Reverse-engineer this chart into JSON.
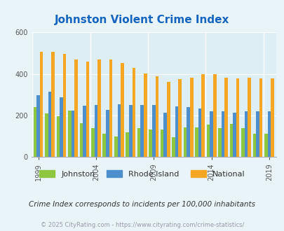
{
  "title": "Johnston Violent Crime Index",
  "johnston_values": [
    240,
    210,
    197,
    225,
    163,
    140,
    113,
    100,
    120,
    140,
    133,
    133,
    95,
    143,
    142,
    155,
    140,
    160,
    140,
    113,
    112
  ],
  "rhode_island_values": [
    298,
    313,
    287,
    225,
    247,
    250,
    228,
    253,
    250,
    250,
    249,
    215,
    245,
    240,
    232,
    220,
    220,
    215,
    221,
    219,
    220
  ],
  "national_values": [
    506,
    507,
    495,
    470,
    460,
    468,
    469,
    453,
    430,
    403,
    390,
    362,
    375,
    383,
    400,
    397,
    383,
    378,
    383,
    380,
    377
  ],
  "johnston_color": "#8dc63f",
  "rhode_island_color": "#4d8fcc",
  "national_color": "#f5a623",
  "bg_color": "#e8f4f8",
  "plot_bg": "#ddeef5",
  "title_color": "#1565c0",
  "note_color": "#333333",
  "url_color": "#9999aa",
  "ylim_min": 0,
  "ylim_max": 600,
  "yticks": [
    0,
    200,
    400,
    600
  ],
  "xtick_years": [
    1999,
    2004,
    2009,
    2014,
    2019
  ],
  "note_text": "Crime Index corresponds to incidents per 100,000 inhabitants",
  "url_text": "© 2025 CityRating.com - https://www.cityrating.com/crime-statistics/"
}
